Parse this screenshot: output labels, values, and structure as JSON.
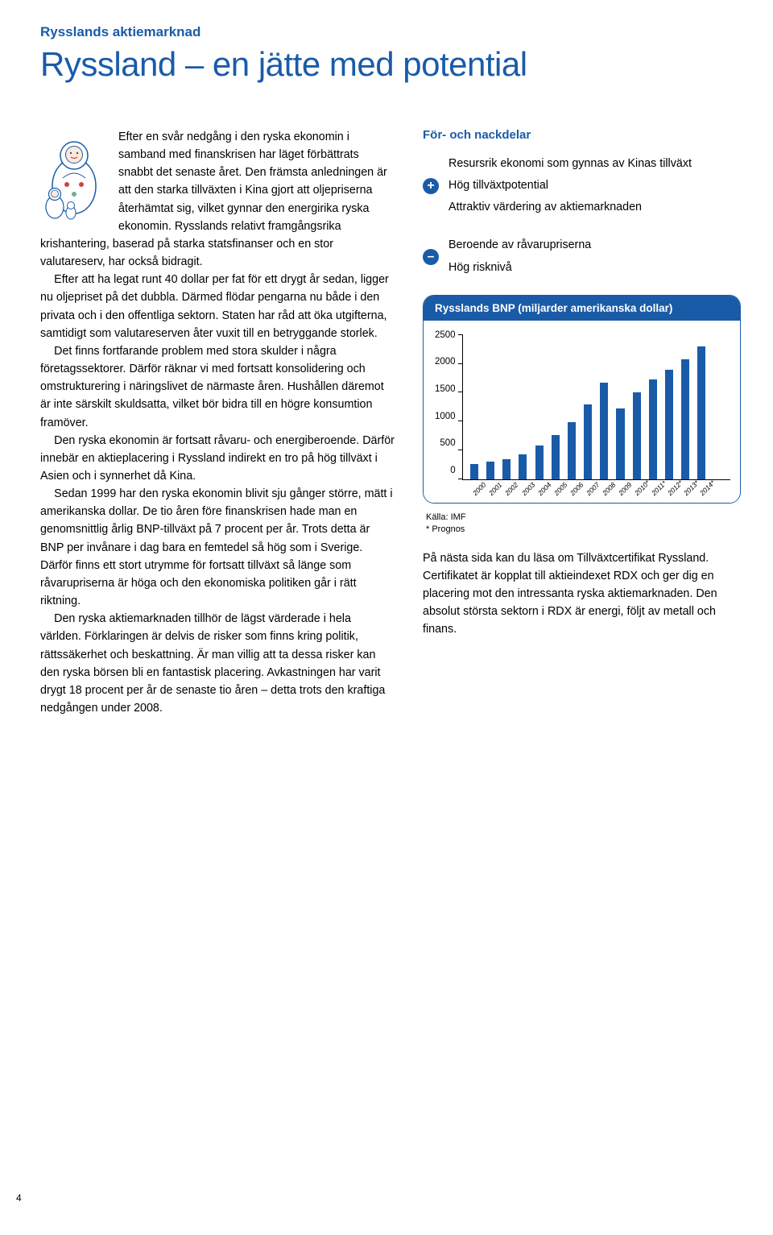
{
  "supertitle": "Rysslands aktiemarknad",
  "title": "Ryssland – en jätte med potential",
  "pageNumber": "4",
  "body": {
    "p1": "Efter en svår nedgång i den ryska ekonomin i samband med finanskrisen har läget förbättrats snabbt det senaste året. Den främsta anledningen är att den starka tillväxten i Kina gjort att olje­priserna återhämtat sig, vilket gynnar den energirika ryska ekonomin. Rysslands relativt framgångsrika krishantering, baserad på starka statsfinanser och en stor valutareserv, har också bidragit.",
    "p2": "Efter att ha legat runt 40 dollar per fat för ett drygt år sedan, ligger nu oljepriset på det dubbla. Därmed flödar pengarna nu både i den privata och i den offentliga sektorn. Staten har råd att öka utgifterna, samtidigt som valutareserven åter vuxit till en betryggande storlek.",
    "p3": "Det finns fortfarande problem med stora skulder i några företagssektorer. Därför räknar vi med fortsatt konsolidering och omstrukturering i näringslivet de närmaste åren. Hushållen däremot är inte särskilt skuldsatta, vilket bör bidra till en högre konsumtion framöver.",
    "p4": "Den ryska ekonomin är fortsatt råvaru- och energiberoende. Därför innebär en aktieplacering i Ryssland indirekt en tro på hög tillväxt i Asien och i synnerhet då Kina.",
    "p5": "Sedan 1999 har den ryska ekonomin blivit sju gånger större, mätt i amerikanska dollar. De tio åren före finanskrisen hade man en genomsnittlig årlig BNP-tillväxt på 7 procent per år. Trots detta är BNP per invånare i dag bara en femtedel så hög som i Sverige. Därför finns ett stort utrymme för fortsatt tillväxt så länge som råvarupriserna är höga och den ekonomiska politiken går i rätt riktning.",
    "p6": "Den ryska aktiemarknaden tillhör de lägst värderade i hela världen. Förklaringen är delvis de risker som finns kring politik, rättssäkerhet och beskattning. Är man villig att ta dessa risker kan den ryska börsen bli en fantastisk placering. Avkastningen har varit drygt 18 procent per år de senaste tio åren – detta trots den kraftiga nedgången under 2008."
  },
  "proscons": {
    "title": "För- och nackdelar",
    "plus": [
      "Resursrik ekonomi som gynnas av Kinas tillväxt",
      "Hög tillväxtpotential",
      "Attraktiv värdering av aktiemarknaden"
    ],
    "minus": [
      "Beroende av råvarupriserna",
      "Hög risknivå"
    ]
  },
  "chart": {
    "title": "Rysslands BNP (miljarder amerikanska dollar)",
    "ylim": [
      0,
      2500
    ],
    "ytick_step": 500,
    "yticks": [
      "2500",
      "2000",
      "1500",
      "1000",
      "500",
      "0"
    ],
    "categories": [
      "2000",
      "2001",
      "2002",
      "2003",
      "2004",
      "2005",
      "2006",
      "2007",
      "2008",
      "2009",
      "2010*",
      "2011*",
      "2012*",
      "2013*",
      "2014*"
    ],
    "values": [
      260,
      310,
      350,
      430,
      590,
      760,
      990,
      1290,
      1670,
      1230,
      1500,
      1730,
      1900,
      2080,
      2300
    ],
    "bar_color": "#1a5ba8",
    "background": "#ffffff",
    "source1": "Källa: IMF",
    "source2": "* Prognos"
  },
  "closing": "På nästa sida kan du läsa om Tillväxtcertifikat Ryssland. Certifikatet är kopplat till aktieindexet RDX och ger dig en placering mot den intressanta ryska aktiemarknaden. Den absolut största sektorn i RDX är energi, följt av metall och finans."
}
